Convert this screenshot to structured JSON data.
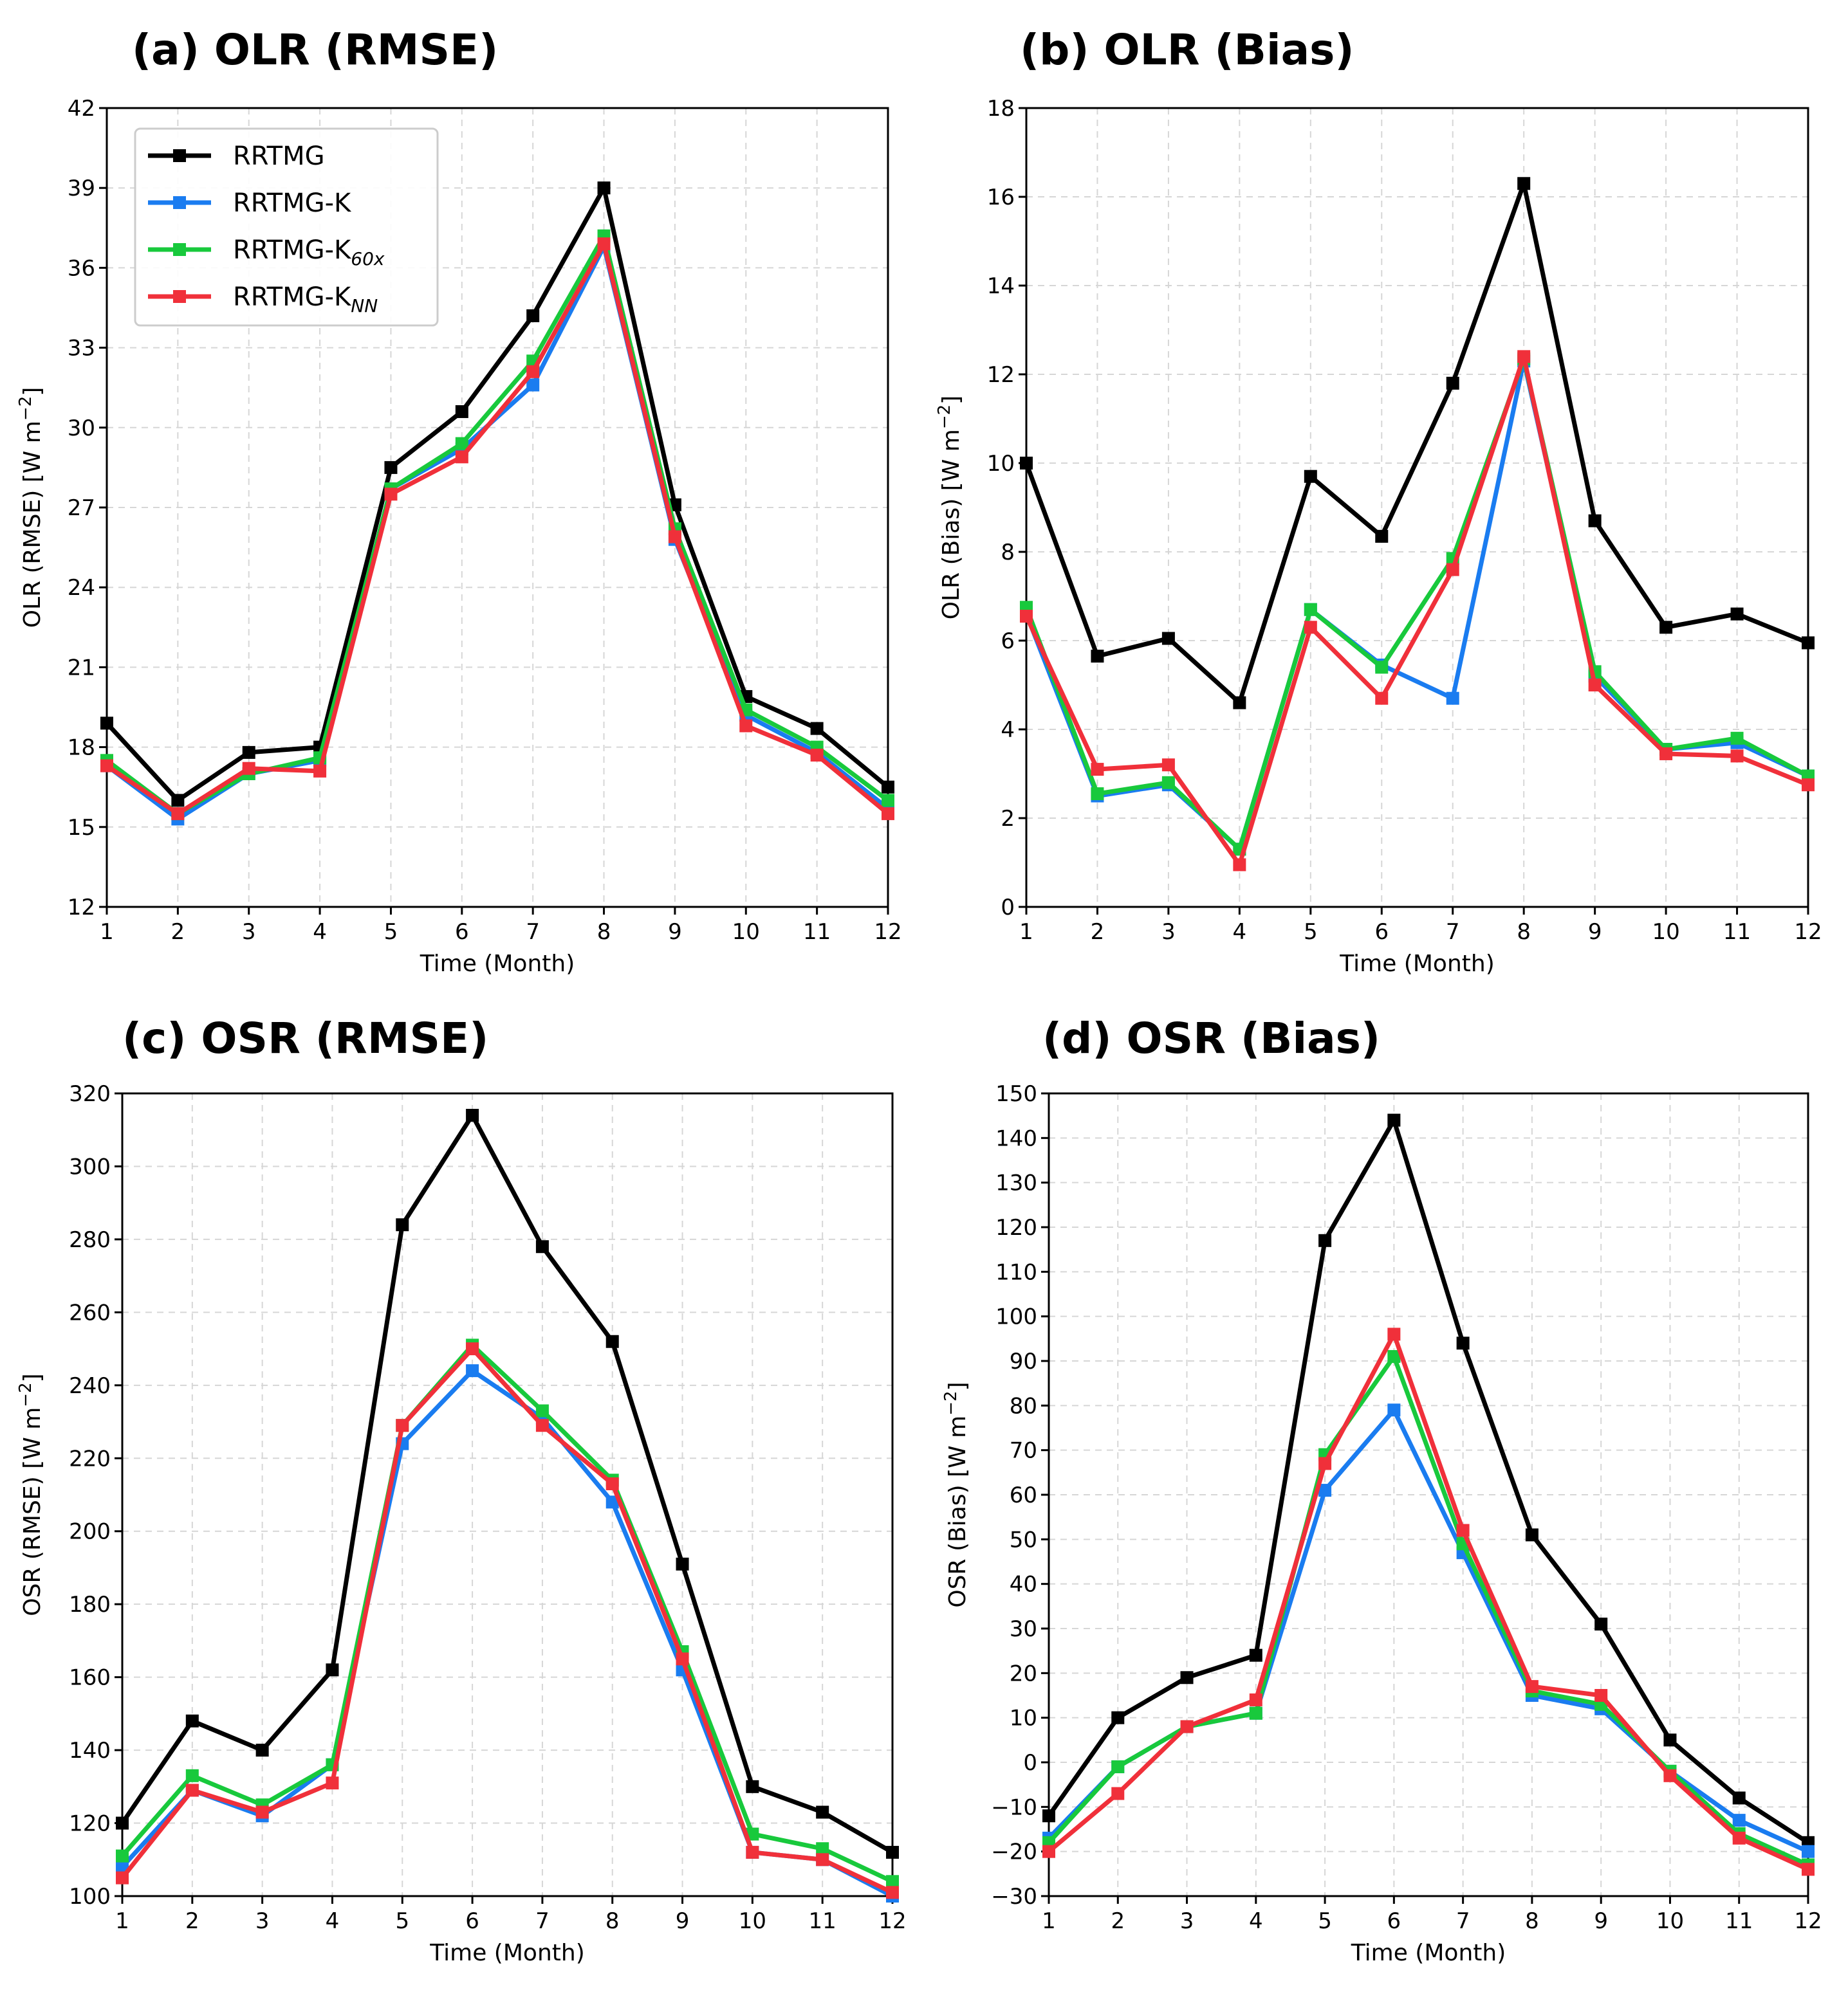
{
  "colors": {
    "RRTMG": "#000000",
    "RRTMG-K": "#1a7cf0",
    "RRTMG-K60x": "#18c93c",
    "RRTMG-KNN": "#f0303a",
    "grid": "#d6d6d6"
  },
  "legend": {
    "entries": [
      {
        "key": "RRTMG",
        "base": "RRTMG",
        "sub": ""
      },
      {
        "key": "RRTMG-K",
        "base": "RRTMG-K",
        "sub": ""
      },
      {
        "key": "RRTMG-K60x",
        "base": "RRTMG-K",
        "sub": "60x"
      },
      {
        "key": "RRTMG-KNN",
        "base": "RRTMG-K",
        "sub": "NN"
      }
    ]
  },
  "chart_data": [
    {
      "type": "line",
      "title": "(a) OLR (RMSE)",
      "xlabel": "Time (Month)",
      "ylabel": "OLR (RMSE) [W m",
      "ylabel_sup": "−2",
      "ylabel_end": "]",
      "x": [
        1,
        2,
        3,
        4,
        5,
        6,
        7,
        8,
        9,
        10,
        11,
        12
      ],
      "ylim": [
        12,
        42
      ],
      "yticks": [
        12,
        15,
        18,
        21,
        24,
        27,
        30,
        33,
        36,
        39,
        42
      ],
      "series": [
        {
          "name": "RRTMG",
          "values": [
            18.9,
            16.0,
            17.8,
            18.0,
            28.5,
            30.6,
            34.2,
            39.0,
            27.1,
            19.9,
            18.7,
            16.5
          ]
        },
        {
          "name": "RRTMG-K",
          "values": [
            17.3,
            15.3,
            17.0,
            17.5,
            27.7,
            29.2,
            31.6,
            36.8,
            25.8,
            19.2,
            17.8,
            15.7
          ]
        },
        {
          "name": "RRTMG-K60x",
          "values": [
            17.5,
            15.5,
            17.0,
            17.6,
            27.7,
            29.4,
            32.5,
            37.2,
            26.2,
            19.4,
            18.0,
            16.0
          ]
        },
        {
          "name": "RRTMG-KNN",
          "values": [
            17.3,
            15.5,
            17.2,
            17.1,
            27.5,
            28.9,
            32.1,
            36.9,
            25.9,
            18.8,
            17.7,
            15.5
          ]
        }
      ]
    },
    {
      "type": "line",
      "title": "(b) OLR (Bias)",
      "xlabel": "Time (Month)",
      "ylabel": "OLR (Bias) [W m",
      "ylabel_sup": "−2",
      "ylabel_end": "]",
      "x": [
        1,
        2,
        3,
        4,
        5,
        6,
        7,
        8,
        9,
        10,
        11,
        12
      ],
      "ylim": [
        0,
        18
      ],
      "yticks": [
        0,
        2,
        4,
        6,
        8,
        10,
        12,
        14,
        16,
        18
      ],
      "series": [
        {
          "name": "RRTMG",
          "values": [
            10.0,
            5.65,
            6.05,
            4.6,
            9.7,
            8.35,
            11.8,
            16.3,
            8.7,
            6.3,
            6.6,
            5.95
          ]
        },
        {
          "name": "RRTMG-K",
          "values": [
            6.6,
            2.5,
            2.75,
            1.3,
            6.7,
            5.45,
            4.7,
            12.3,
            5.2,
            3.55,
            3.7,
            2.95
          ]
        },
        {
          "name": "RRTMG-K60x",
          "values": [
            6.75,
            2.55,
            2.8,
            1.3,
            6.7,
            5.4,
            7.85,
            12.35,
            5.3,
            3.55,
            3.8,
            2.95
          ]
        },
        {
          "name": "RRTMG-KNN",
          "values": [
            6.55,
            3.1,
            3.2,
            0.95,
            6.3,
            4.7,
            7.6,
            12.4,
            5.0,
            3.45,
            3.4,
            2.75
          ]
        }
      ]
    },
    {
      "type": "line",
      "title": "(c) OSR (RMSE)",
      "xlabel": "Time (Month)",
      "ylabel": "OSR (RMSE) [W m",
      "ylabel_sup": "−2",
      "ylabel_end": "]",
      "x": [
        1,
        2,
        3,
        4,
        5,
        6,
        7,
        8,
        9,
        10,
        11,
        12
      ],
      "ylim": [
        100,
        320
      ],
      "yticks": [
        100,
        120,
        140,
        160,
        180,
        200,
        220,
        240,
        260,
        280,
        300,
        320
      ],
      "series": [
        {
          "name": "RRTMG",
          "values": [
            120,
            148,
            140,
            162,
            284,
            314,
            278,
            252,
            191,
            130,
            123,
            112
          ]
        },
        {
          "name": "RRTMG-K",
          "values": [
            108,
            129,
            122,
            136,
            224,
            244,
            231,
            208,
            162,
            112,
            110,
            100
          ]
        },
        {
          "name": "RRTMG-K60x",
          "values": [
            111,
            133,
            125,
            136,
            229,
            251,
            233,
            214,
            167,
            117,
            113,
            104
          ]
        },
        {
          "name": "RRTMG-KNN",
          "values": [
            105,
            129,
            123,
            131,
            229,
            250,
            229,
            213,
            165,
            112,
            110,
            101
          ]
        }
      ]
    },
    {
      "type": "line",
      "title": "(d) OSR (Bias)",
      "xlabel": "Time (Month)",
      "ylabel": "OSR (Bias) [W m",
      "ylabel_sup": "−2",
      "ylabel_end": "]",
      "x": [
        1,
        2,
        3,
        4,
        5,
        6,
        7,
        8,
        9,
        10,
        11,
        12
      ],
      "ylim": [
        -30,
        150
      ],
      "yticks": [
        -30,
        -20,
        -10,
        0,
        10,
        20,
        30,
        40,
        50,
        60,
        70,
        80,
        90,
        100,
        110,
        120,
        130,
        140,
        150
      ],
      "series": [
        {
          "name": "RRTMG",
          "values": [
            -12,
            10,
            19,
            24,
            117,
            144,
            94,
            51,
            31,
            5,
            -8,
            -18
          ]
        },
        {
          "name": "RRTMG-K",
          "values": [
            -17,
            -1,
            8,
            11,
            61,
            79,
            47,
            15,
            12,
            -2,
            -13,
            -20
          ]
        },
        {
          "name": "RRTMG-K60x",
          "values": [
            -18,
            -1,
            8,
            11,
            69,
            91,
            49,
            16,
            13,
            -2,
            -16,
            -23
          ]
        },
        {
          "name": "RRTMG-KNN",
          "values": [
            -20,
            -7,
            8,
            14,
            67,
            96,
            52,
            17,
            15,
            -3,
            -17,
            -24
          ]
        }
      ]
    }
  ]
}
